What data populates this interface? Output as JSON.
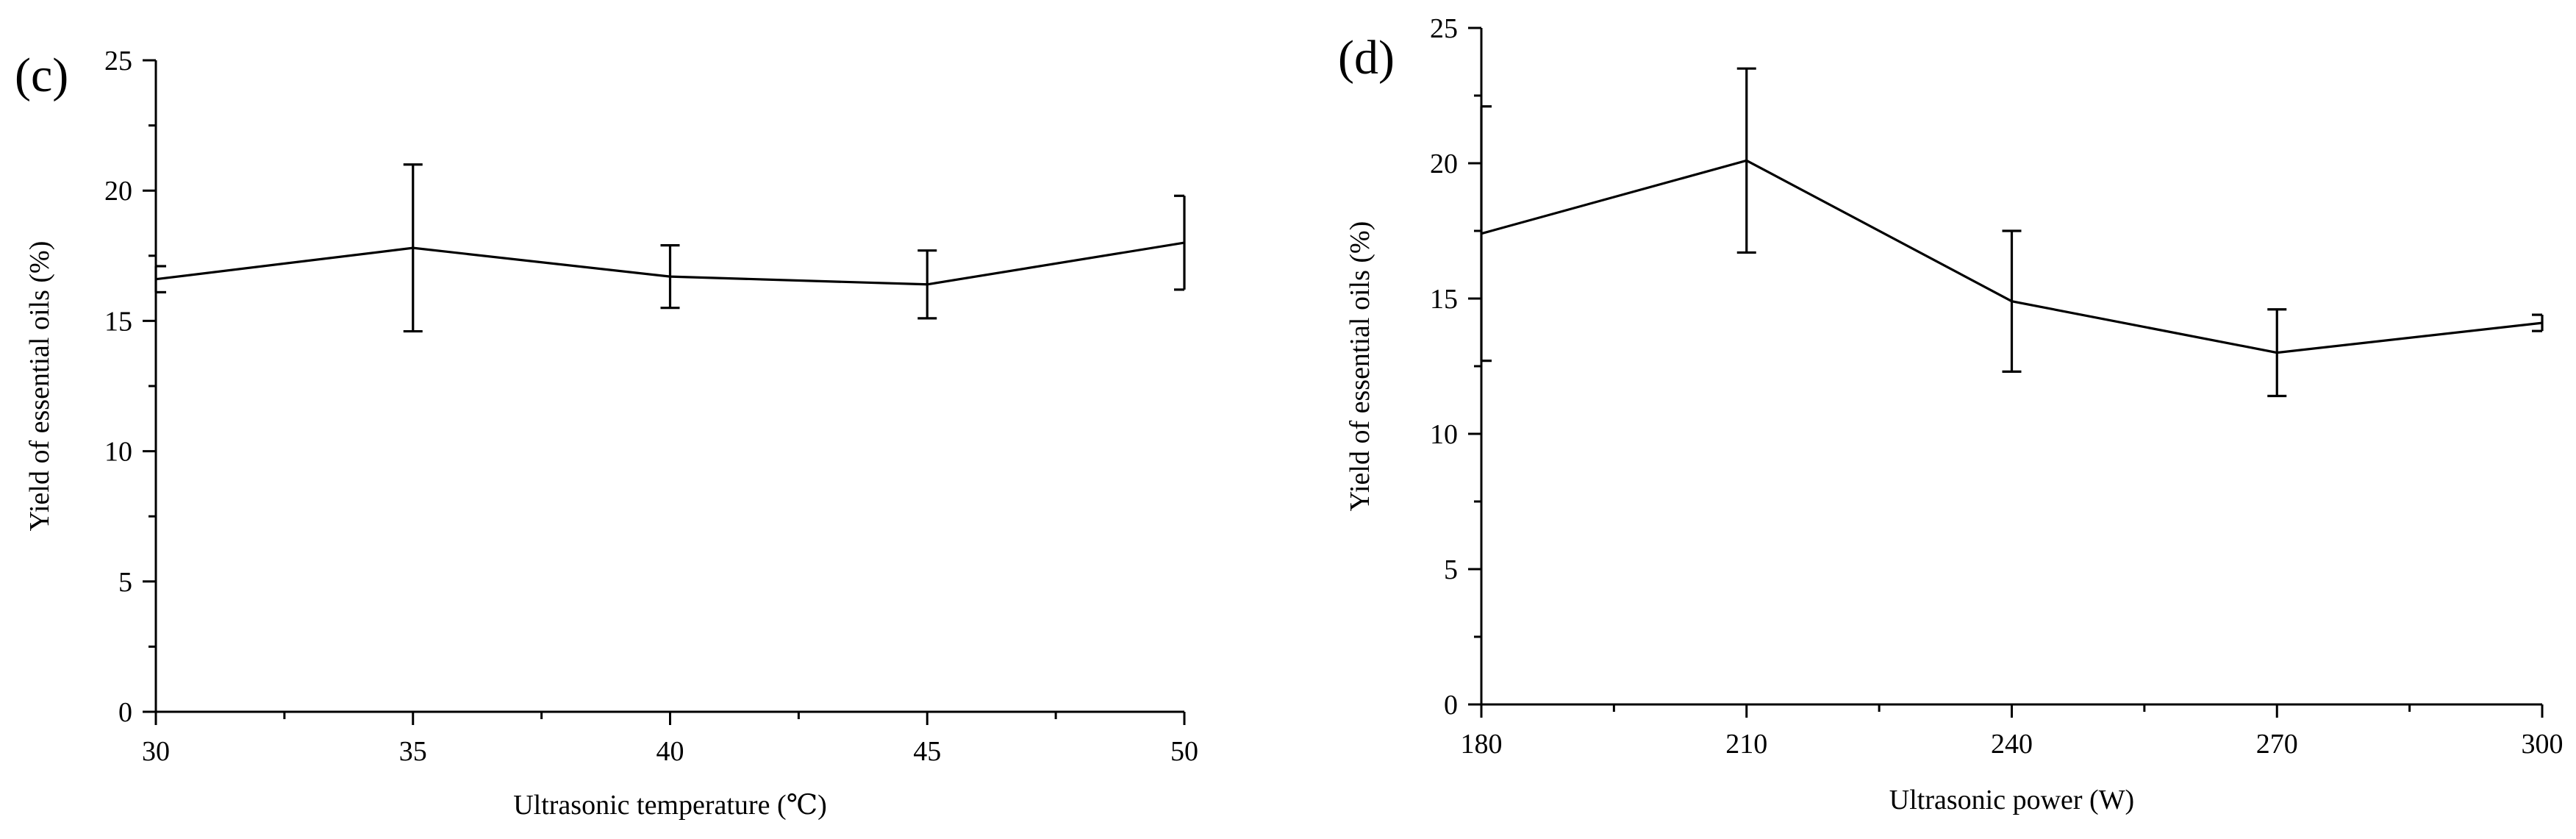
{
  "chart_data": [
    {
      "type": "line",
      "panel_label": "(c)",
      "xlabel": "Ultrasonic temperature (℃)",
      "ylabel": "Yield of essential oils (%)",
      "x": [
        30,
        35,
        40,
        45,
        50
      ],
      "y": [
        16.6,
        17.8,
        16.7,
        16.4,
        18.0
      ],
      "y_err": [
        0.5,
        3.2,
        1.2,
        1.3,
        1.8
      ],
      "xlim": [
        30,
        50
      ],
      "ylim": [
        0,
        25
      ],
      "xticks": [
        "30",
        "35",
        "40",
        "45",
        "50"
      ],
      "yticks": [
        "0",
        "5",
        "10",
        "15",
        "20",
        "25"
      ],
      "grid": false
    },
    {
      "type": "line",
      "panel_label": "(d)",
      "xlabel": "Ultrasonic power (W)",
      "ylabel": "Yield of essential oils (%)",
      "x": [
        180,
        210,
        240,
        270,
        300
      ],
      "y": [
        17.4,
        20.1,
        14.9,
        13.0,
        14.1
      ],
      "y_err": [
        4.7,
        3.4,
        2.6,
        1.6,
        0.3
      ],
      "xlim": [
        180,
        300
      ],
      "ylim": [
        0,
        25
      ],
      "xticks": [
        "180",
        "210",
        "240",
        "270",
        "300"
      ],
      "yticks": [
        "0",
        "5",
        "10",
        "15",
        "20",
        "25"
      ],
      "grid": false
    }
  ]
}
